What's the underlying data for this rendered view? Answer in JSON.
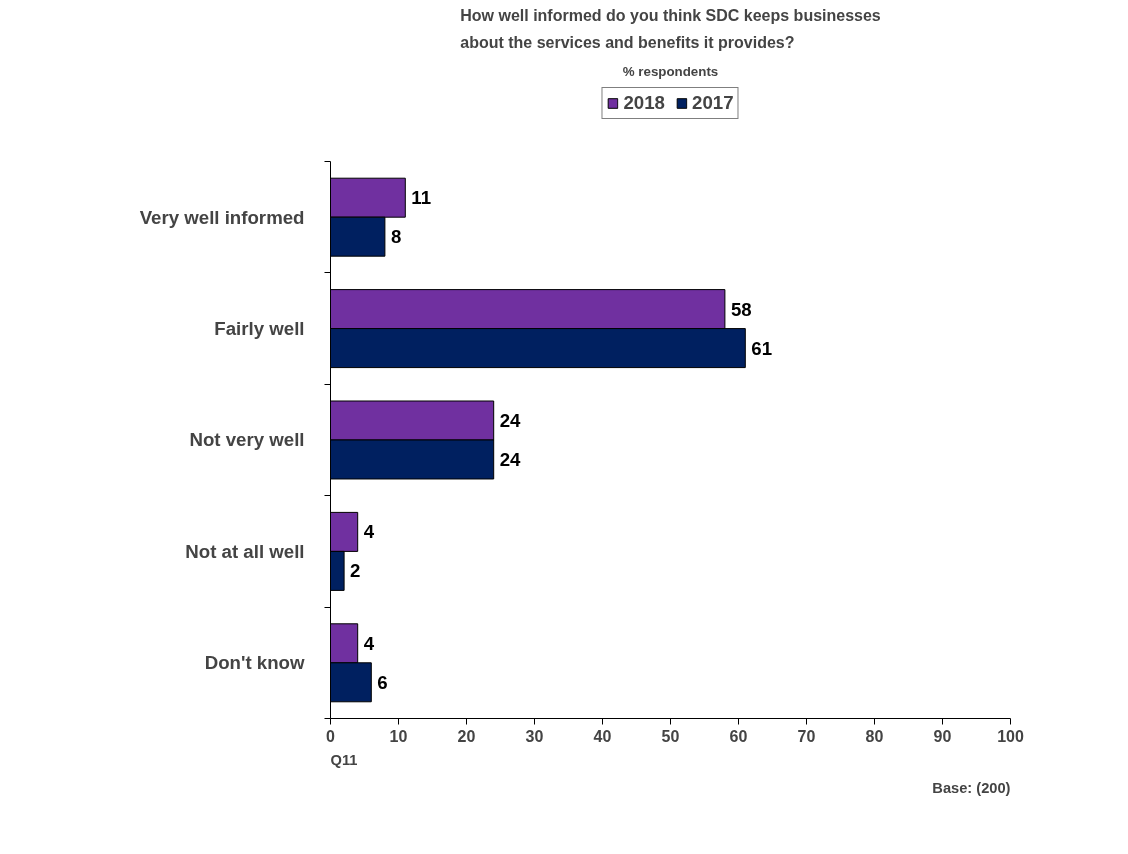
{
  "chart_data": {
    "type": "bar",
    "orientation": "horizontal",
    "title": "How well informed do you think SDC keeps businesses about the services and benefits it provides?",
    "subtitle": "% respondents",
    "categories": [
      "Very well informed",
      "Fairly well",
      "Not very well",
      "Not at all well",
      "Don't know"
    ],
    "series": [
      {
        "name": "2018",
        "color": "#7030a0",
        "values": [
          11,
          58,
          24,
          4,
          4
        ]
      },
      {
        "name": "2017",
        "color": "#002060",
        "values": [
          8,
          61,
          24,
          2,
          6
        ]
      }
    ],
    "xlim": [
      0,
      100
    ],
    "xticks": [
      0,
      10,
      20,
      30,
      40,
      50,
      60,
      70,
      80,
      90,
      100
    ],
    "grid": false,
    "legend": "top",
    "data_labels": true,
    "annotations": [
      "Q11",
      "Base: (200)"
    ]
  }
}
